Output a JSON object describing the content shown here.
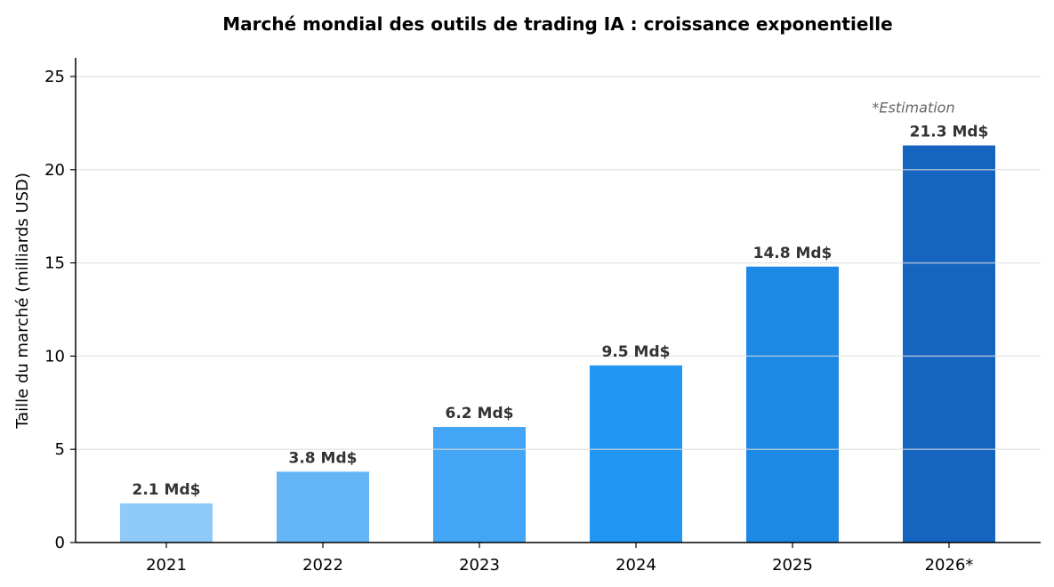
{
  "chart_data": {
    "type": "bar",
    "title": "Marché mondial des outils de trading IA : croissance exponentielle",
    "xlabel": "",
    "ylabel": "Taille du marché (milliards USD)",
    "categories": [
      "2021",
      "2022",
      "2023",
      "2024",
      "2025",
      "2026*"
    ],
    "values": [
      2.1,
      3.8,
      6.2,
      9.5,
      14.8,
      21.3
    ],
    "data_labels": [
      "2.1 Md$",
      "3.8 Md$",
      "6.2 Md$",
      "9.5 Md$",
      "14.8 Md$",
      "21.3 Md$"
    ],
    "colors": [
      "#90CAF9",
      "#64B5F6",
      "#42A5F5",
      "#2196F3",
      "#1E88E5",
      "#1565C0"
    ],
    "ylim": [
      0,
      26
    ],
    "yticks": [
      0,
      5,
      10,
      15,
      20,
      25
    ],
    "grid": "y",
    "annotation": "*Estimation"
  }
}
